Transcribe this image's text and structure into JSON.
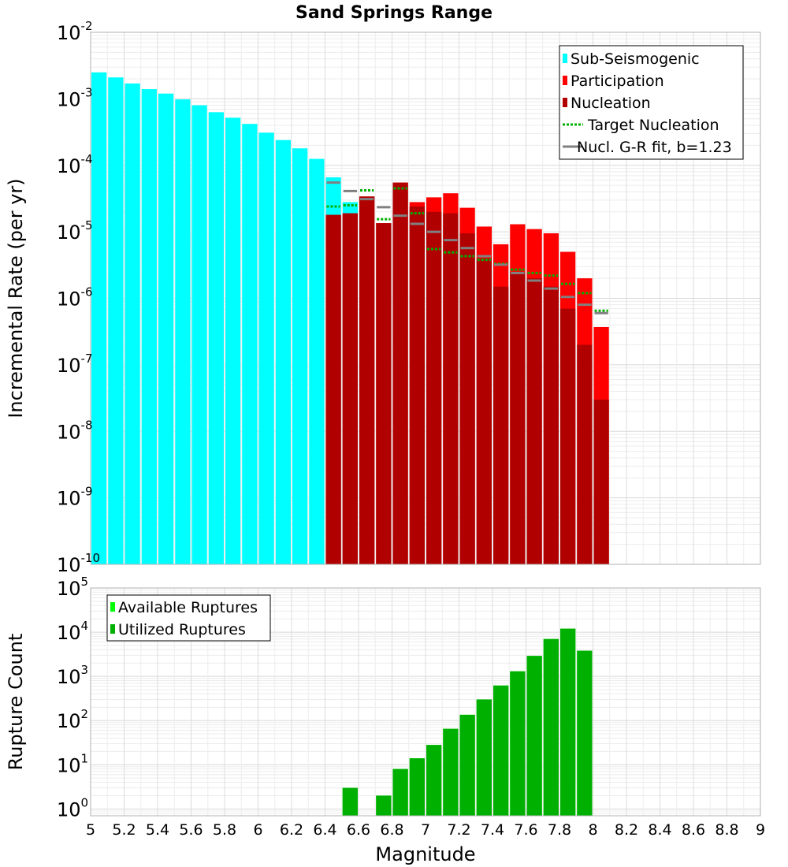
{
  "chart_data": {
    "title": "Sand Springs Range",
    "xlabel": "Magnitude",
    "xlim": [
      5,
      9
    ],
    "x_ticks": [
      "5",
      "5.2",
      "5.4",
      "5.6",
      "5.8",
      "6",
      "6.2",
      "6.4",
      "6.6",
      "6.8",
      "7",
      "7.2",
      "7.4",
      "7.6",
      "7.8",
      "8",
      "8.2",
      "8.4",
      "8.6",
      "8.8",
      "9"
    ],
    "grid": true,
    "panels": [
      {
        "type": "bar",
        "yscale": "log",
        "ylabel": "Incremental Rate (per yr)",
        "ylim": [
          1e-10,
          0.01
        ],
        "y_ticks": [
          {
            "base": "10",
            "exp": "-2",
            "value": 0.01
          },
          {
            "base": "10",
            "exp": "-3",
            "value": 0.001
          },
          {
            "base": "10",
            "exp": "-4",
            "value": 0.0001
          },
          {
            "base": "10",
            "exp": "-5",
            "value": 1e-05
          },
          {
            "base": "10",
            "exp": "-6",
            "value": 1e-06
          },
          {
            "base": "10",
            "exp": "-7",
            "value": 1e-07
          },
          {
            "base": "10",
            "exp": "-8",
            "value": 1e-08
          },
          {
            "base": "10",
            "exp": "-9",
            "value": 1e-09
          },
          {
            "base": "10",
            "exp": "-10",
            "value": 1e-10
          }
        ],
        "legend_position": "top-right",
        "series": [
          {
            "name": "Sub-Seismogenic",
            "kind": "bar",
            "color": "#00ffff",
            "x": [
              5.05,
              5.15,
              5.25,
              5.35,
              5.45,
              5.55,
              5.65,
              5.75,
              5.85,
              5.95,
              6.05,
              6.15,
              6.25,
              6.35,
              6.45,
              6.55
            ],
            "y": [
              0.0025,
              0.0021,
              0.0017,
              0.0014,
              0.0012,
              0.00098,
              0.0008,
              0.00063,
              0.00052,
              0.00042,
              0.00031,
              0.00024,
              0.00018,
              0.000125,
              6.6e-05,
              2.8e-05
            ]
          },
          {
            "name": "Participation",
            "kind": "bar",
            "color": "#ff0000",
            "x": [
              6.45,
              6.55,
              6.65,
              6.75,
              6.85,
              6.95,
              7.05,
              7.15,
              7.25,
              7.35,
              7.45,
              7.55,
              7.65,
              7.75,
              7.85,
              7.95,
              8.05
            ],
            "y": [
              1.8e-05,
              1.9e-05,
              3.4e-05,
              1.35e-05,
              5.5e-05,
              2.8e-05,
              3.3e-05,
              3.8e-05,
              2.3e-05,
              1.2e-05,
              6.5e-06,
              1.3e-05,
              1.1e-05,
              9.5e-06,
              5e-06,
              2e-06,
              3.7e-07
            ]
          },
          {
            "name": "Nucleation",
            "kind": "bar",
            "color": "#b00000",
            "x": [
              6.45,
              6.55,
              6.65,
              6.75,
              6.85,
              6.95,
              7.05,
              7.15,
              7.25,
              7.35,
              7.45,
              7.55,
              7.65,
              7.75,
              7.85,
              7.95,
              8.05
            ],
            "y": [
              1.8e-05,
              1.9e-05,
              3.4e-05,
              1.35e-05,
              5.5e-05,
              2.4e-05,
              2e-05,
              1.9e-05,
              9.5e-06,
              4e-06,
              1.5e-06,
              2.5e-06,
              2e-06,
              1.5e-06,
              7e-07,
              2e-07,
              3e-08
            ]
          },
          {
            "name": "Target Nucleation",
            "kind": "step-dotted",
            "color": "#00b000",
            "x": [
              6.45,
              6.55,
              6.65,
              6.75,
              6.85,
              6.95,
              7.05,
              7.15,
              7.25,
              7.35,
              7.45,
              7.55,
              7.65,
              7.75,
              7.85,
              7.95,
              8.05
            ],
            "y": [
              2.4e-05,
              2.5e-05,
              4.2e-05,
              1.55e-05,
              4.5e-05,
              1.9e-05,
              5.5e-06,
              4.9e-06,
              4.3e-06,
              3.8e-06,
              3.3e-06,
              2.7e-06,
              2.4e-06,
              2.2e-06,
              1.65e-06,
              1.2e-06,
              6.5e-07
            ]
          },
          {
            "name": "Nucl. G-R fit, b=1.23",
            "kind": "step",
            "color": "#808080",
            "x": [
              6.45,
              6.55,
              6.65,
              6.75,
              6.85,
              6.95,
              7.05,
              7.15,
              7.25,
              7.35,
              7.45,
              7.55,
              7.65,
              7.75,
              7.85,
              7.95,
              8.05
            ],
            "y": [
              5.5e-05,
              4.1e-05,
              3.1e-05,
              2.35e-05,
              1.75e-05,
              1.32e-05,
              1e-05,
              7.5e-06,
              5.7e-06,
              4.3e-06,
              3.2e-06,
              2.4e-06,
              1.85e-06,
              1.4e-06,
              1.05e-06,
              8e-07,
              6e-07
            ]
          }
        ]
      },
      {
        "type": "bar",
        "yscale": "log",
        "ylabel": "Rupture Count",
        "ylim": [
          0.7,
          100000
        ],
        "y_ticks": [
          {
            "base": "10",
            "exp": "5",
            "value": 100000
          },
          {
            "base": "10",
            "exp": "4",
            "value": 10000
          },
          {
            "base": "10",
            "exp": "3",
            "value": 1000
          },
          {
            "base": "10",
            "exp": "2",
            "value": 100
          },
          {
            "base": "10",
            "exp": "1",
            "value": 10
          },
          {
            "base": "10",
            "exp": "0",
            "value": 1
          }
        ],
        "legend_position": "top-left",
        "series": [
          {
            "name": "Available Ruptures",
            "kind": "bar",
            "color": "#00ff00",
            "x": [
              6.55,
              6.75,
              6.85,
              6.95,
              7.05,
              7.15,
              7.25,
              7.35,
              7.45,
              7.55,
              7.65,
              7.75,
              7.85,
              7.95
            ],
            "y": [
              3,
              2,
              8,
              14,
              28,
              65,
              135,
              300,
              620,
              1300,
              2900,
              7000,
              12000,
              3800
            ]
          },
          {
            "name": "Utilized Ruptures",
            "kind": "bar",
            "color": "#00b000",
            "x": [
              6.55,
              6.75,
              6.85,
              6.95,
              7.05,
              7.15,
              7.25,
              7.35,
              7.45,
              7.55,
              7.65,
              7.75,
              7.85,
              7.95
            ],
            "y": [
              3,
              2,
              8,
              14,
              28,
              65,
              135,
              300,
              620,
              1300,
              2900,
              7000,
              12000,
              3800
            ]
          }
        ]
      }
    ]
  }
}
